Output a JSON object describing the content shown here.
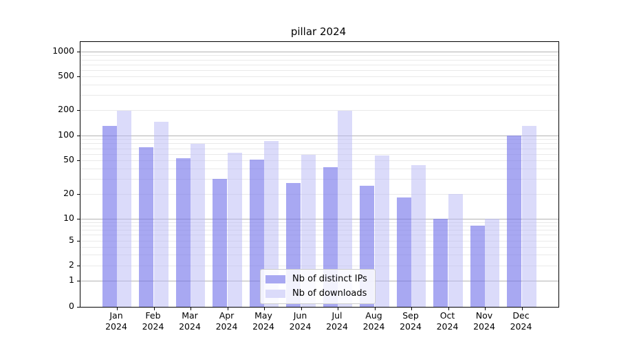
{
  "chart_data": {
    "type": "bar",
    "title": "pillar 2024",
    "categories": [
      "Jan 2024",
      "Feb 2024",
      "Mar 2024",
      "Apr 2024",
      "May 2024",
      "Jun 2024",
      "Jul 2024",
      "Aug 2024",
      "Sep 2024",
      "Oct 2024",
      "Nov 2024",
      "Dec 2024"
    ],
    "series": [
      {
        "name": "Nb of distinct IPs",
        "values": [
          130,
          72,
          53,
          30,
          51,
          27,
          42,
          25,
          18,
          10,
          8,
          100
        ],
        "fill": "rgba(115,115,234,0.62)",
        "swatch": "#a8a8f2"
      },
      {
        "name": "Nb of downloads",
        "values": [
          195,
          145,
          80,
          62,
          85,
          58,
          195,
          57,
          44,
          20,
          10,
          130
        ],
        "fill": "rgba(183,183,245,0.5)",
        "swatch": "#dbdbfa"
      }
    ],
    "y_axis": {
      "scale": "symlog",
      "tick_labels": [
        "0",
        "1",
        "2",
        "5",
        "10",
        "20",
        "50",
        "100",
        "200",
        "500",
        "1000"
      ]
    },
    "grid": true,
    "legend_position": "lower center"
  }
}
